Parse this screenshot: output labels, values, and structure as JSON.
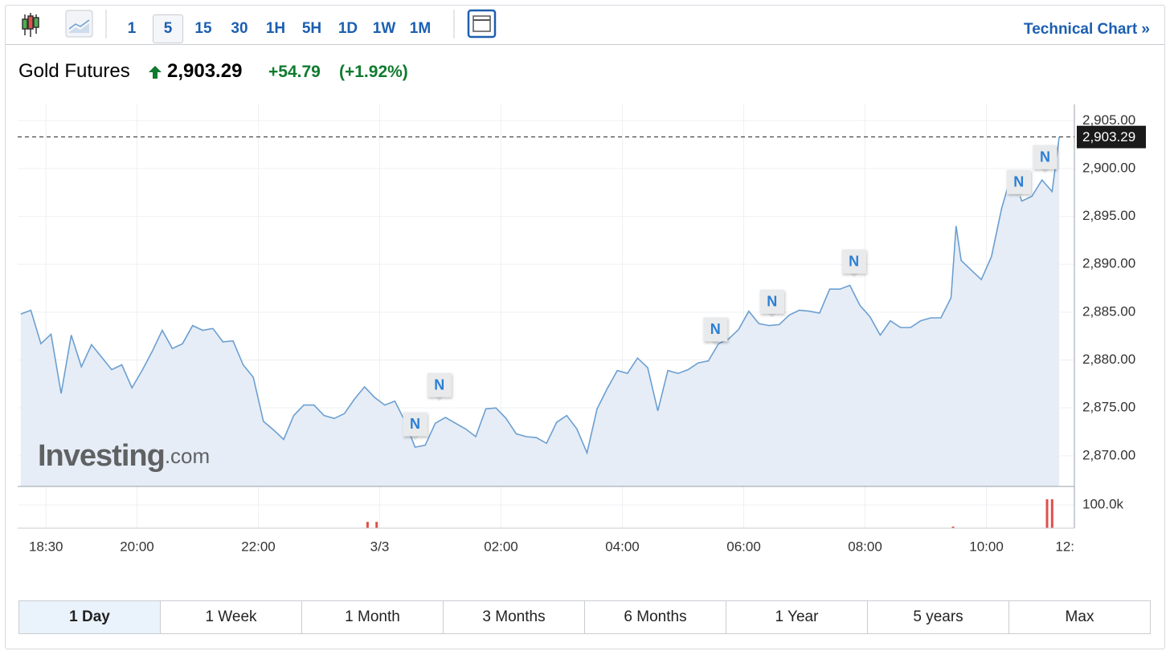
{
  "toolbar": {
    "intervals": [
      "1",
      "5",
      "15",
      "30",
      "1H",
      "5H",
      "1D",
      "1W",
      "1M"
    ],
    "technical_chart": "Technical Chart »"
  },
  "header": {
    "title": "Gold Futures",
    "price": "2,903.29",
    "change": "+54.79",
    "change_percent": "(+1.92%)"
  },
  "chart_data": {
    "type": "area",
    "color": "#6b9fd1",
    "fill": "#e6edf6",
    "grid": true,
    "x": [
      5,
      15,
      25,
      35,
      45,
      55,
      65,
      75,
      85,
      95,
      105,
      115,
      125,
      135,
      145,
      155,
      165,
      175,
      185,
      195,
      205,
      215,
      225,
      235,
      245,
      255,
      265,
      275,
      285,
      295,
      305,
      315,
      325,
      335,
      345,
      355,
      365,
      375,
      385,
      395,
      405,
      415,
      425,
      435,
      445,
      455,
      465,
      475,
      485,
      495,
      505,
      515,
      525,
      535,
      545,
      555,
      565,
      575,
      585,
      595,
      605,
      615,
      625,
      635,
      645,
      655,
      665,
      675,
      685,
      695,
      705,
      715,
      725,
      735,
      745,
      755,
      765,
      775,
      785,
      795,
      805,
      815,
      825,
      835,
      845,
      855,
      865,
      875,
      885,
      895,
      905,
      915,
      925,
      930,
      935,
      945,
      955,
      965,
      975,
      985,
      995,
      1005,
      1015,
      1025,
      1032
    ],
    "values": [
      2884.8,
      2885.2,
      2881.7,
      2882.7,
      2876.5,
      2882.6,
      2879.3,
      2881.6,
      2880.3,
      2879.0,
      2879.5,
      2877.1,
      2878.9,
      2880.9,
      2883.1,
      2881.2,
      2881.7,
      2883.6,
      2883.1,
      2883.3,
      2881.9,
      2882.0,
      2879.5,
      2878.2,
      2873.6,
      2872.7,
      2871.7,
      2874.2,
      2875.3,
      2875.3,
      2874.2,
      2873.9,
      2874.4,
      2875.9,
      2877.2,
      2876.1,
      2875.3,
      2875.7,
      2873.6,
      2870.9,
      2871.1,
      2873.4,
      2874.0,
      2873.4,
      2872.8,
      2872.0,
      2874.9,
      2875.0,
      2873.9,
      2872.3,
      2872.0,
      2871.9,
      2871.3,
      2873.5,
      2874.2,
      2872.8,
      2870.3,
      2874.9,
      2877.0,
      2878.9,
      2878.6,
      2880.2,
      2879.2,
      2874.7,
      2878.9,
      2878.6,
      2879.0,
      2879.7,
      2879.9,
      2881.7,
      2882.2,
      2883.2,
      2885.1,
      2883.8,
      2883.6,
      2883.7,
      2884.7,
      2885.2,
      2885.1,
      2884.9,
      2887.4,
      2887.4,
      2887.8,
      2885.7,
      2884.5,
      2882.6,
      2884.1,
      2883.4,
      2883.4,
      2884.1,
      2884.4,
      2884.4,
      2886.5,
      2894.0,
      2890.4,
      2889.4,
      2888.4,
      2890.8,
      2895.8,
      2899.5,
      2896.6,
      2897.1,
      2898.8,
      2897.6,
      2903.29
    ],
    "xlim": [
      2,
      1047
    ],
    "ylim": [
      2866.8,
      2906.7
    ],
    "xticks": [
      {
        "value": 30,
        "label": "18:30"
      },
      {
        "value": 120,
        "label": "20:00"
      },
      {
        "value": 240,
        "label": "22:00"
      },
      {
        "value": 360,
        "label": "3/3"
      },
      {
        "value": 480,
        "label": "02:00"
      },
      {
        "value": 600,
        "label": "04:00"
      },
      {
        "value": 720,
        "label": "06:00"
      },
      {
        "value": 840,
        "label": "08:00"
      },
      {
        "value": 960,
        "label": "10:00"
      },
      {
        "value": 1080,
        "label": "12:"
      }
    ],
    "yticks": [
      {
        "value": 2870,
        "label": "2,870.00"
      },
      {
        "value": 2875,
        "label": "2,875.00"
      },
      {
        "value": 2880,
        "label": "2,880.00"
      },
      {
        "value": 2885,
        "label": "2,885.00"
      },
      {
        "value": 2890,
        "label": "2,890.00"
      },
      {
        "value": 2895,
        "label": "2,895.00"
      },
      {
        "value": 2900,
        "label": "2,900.00"
      },
      {
        "value": 2905,
        "label": "2,905.00"
      }
    ],
    "price_line": {
      "value": 2903.29,
      "label": "2,903.29"
    },
    "news": [
      {
        "x": 395,
        "y": 2873.3,
        "label": "N"
      },
      {
        "x": 419,
        "y": 2877.4,
        "label": "N"
      },
      {
        "x": 692,
        "y": 2883.2,
        "label": "N"
      },
      {
        "x": 748,
        "y": 2886.1,
        "label": "N"
      },
      {
        "x": 829,
        "y": 2890.3,
        "label": "N"
      },
      {
        "x": 992,
        "y": 2898.6,
        "label": "N"
      },
      {
        "x": 1018,
        "y": 2901.2,
        "label": "N"
      }
    ],
    "volume": {
      "color": "#e0504a",
      "x": [
        348,
        357,
        927,
        1020,
        1025
      ],
      "values": [
        27000,
        27000,
        7000,
        124000,
        124000
      ],
      "ylim": [
        0,
        179000
      ],
      "yticks": [
        {
          "value": 100000,
          "label": "100.0k"
        }
      ]
    },
    "watermark": {
      "brand": "Investing",
      "suffix": ".com"
    }
  },
  "range_buttons": [
    "1 Day",
    "1 Week",
    "1 Month",
    "3 Months",
    "6 Months",
    "1 Year",
    "5 years",
    "Max"
  ]
}
